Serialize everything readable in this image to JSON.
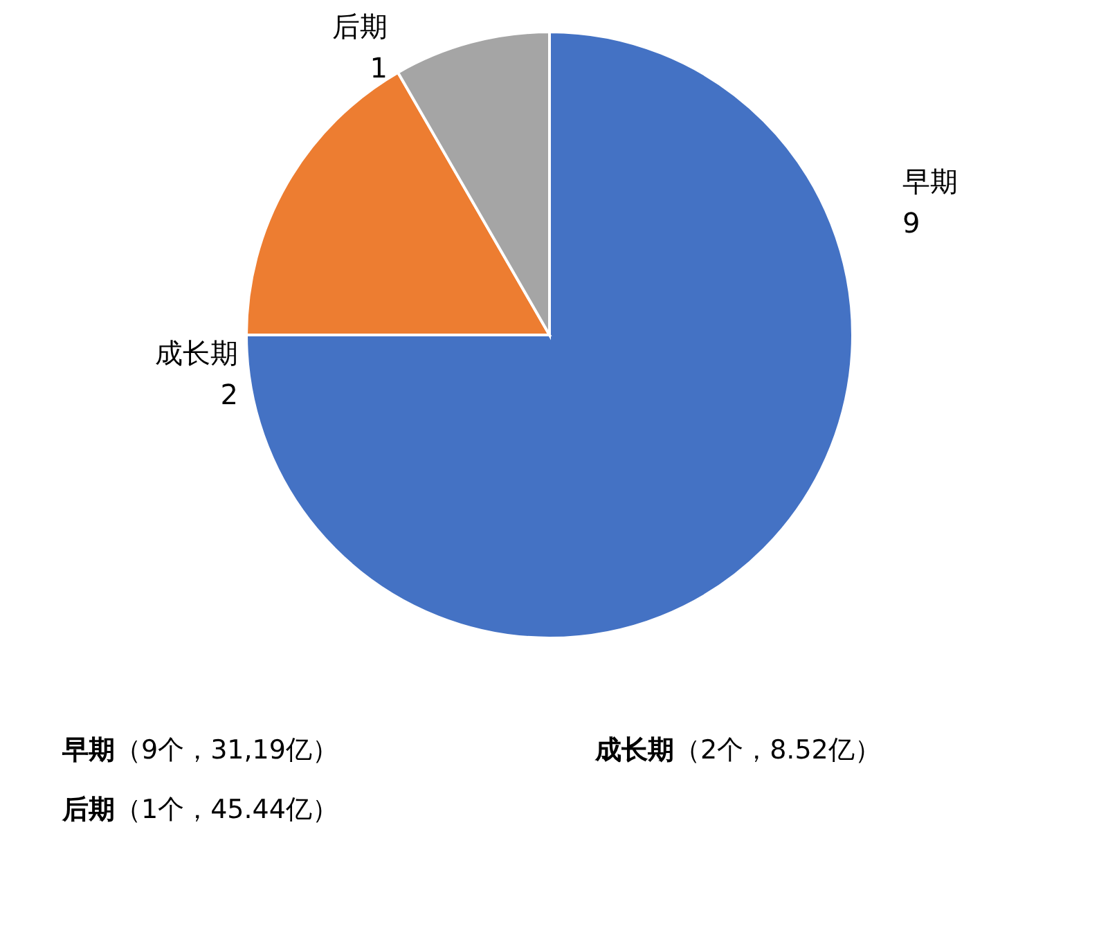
{
  "chart_data": {
    "type": "pie",
    "categories": [
      "早期",
      "成长期",
      "后期"
    ],
    "values": [
      9,
      2,
      1
    ],
    "colors": [
      "#4472c4",
      "#ed7d31",
      "#a5a5a5"
    ],
    "data_labels": true,
    "annotations": [
      "早期（9个，31,19亿）",
      "成长期（2个，8.52亿）",
      "后期（1个，45.44亿）"
    ]
  }
}
